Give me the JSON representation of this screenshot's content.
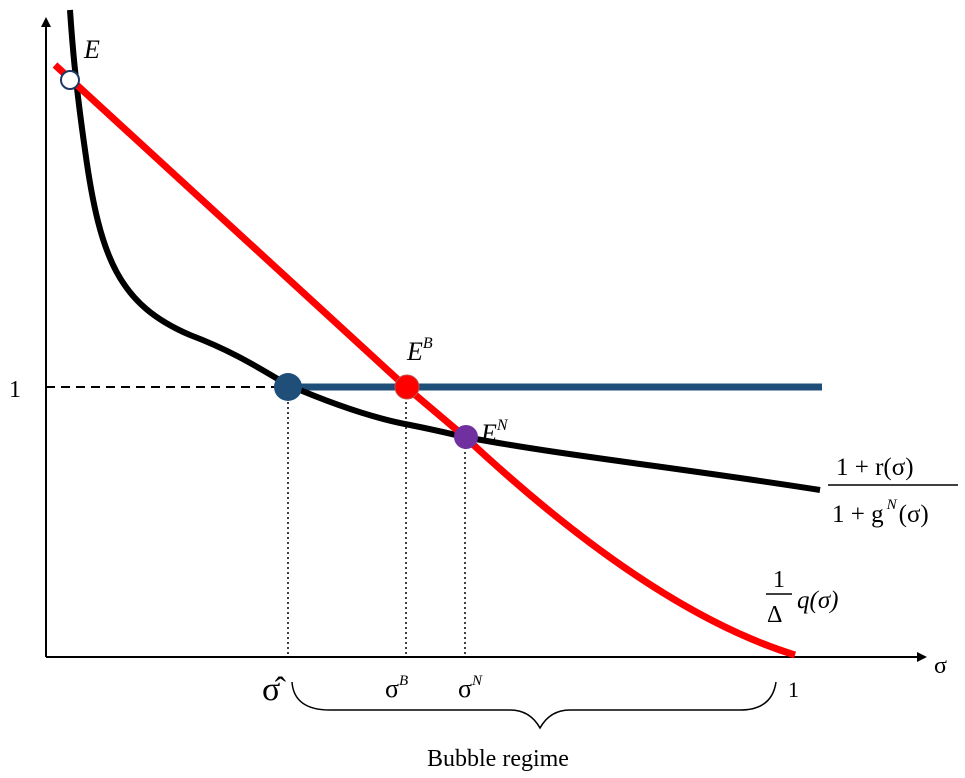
{
  "axes": {
    "x_label": "σ",
    "y_tick_one": "1"
  },
  "points": {
    "E": "E",
    "EB": "E",
    "EB_sup": "B",
    "EN": "E",
    "EN_sup": "N"
  },
  "curves": {
    "ratio": {
      "num": "1 + r(σ)",
      "den_pre": "1 + g",
      "den_sup": "N",
      "den_post": "(σ)"
    },
    "q": {
      "frac_num": "1",
      "frac_den": "Δ",
      "func": "q(σ)"
    }
  },
  "x_ticks": {
    "sigma_hat": "σ̂",
    "sigma_b": "σ",
    "sigma_b_sup": "B",
    "sigma_n": "σ",
    "sigma_n_sup": "N",
    "one": "1"
  },
  "regime_label": "Bubble regime",
  "colors": {
    "red_curve": "#ff0000",
    "black_curve": "#000000",
    "blue_line": "#1f4e79",
    "eb_dot": "#ff0000",
    "en_dot": "#7030a0"
  }
}
